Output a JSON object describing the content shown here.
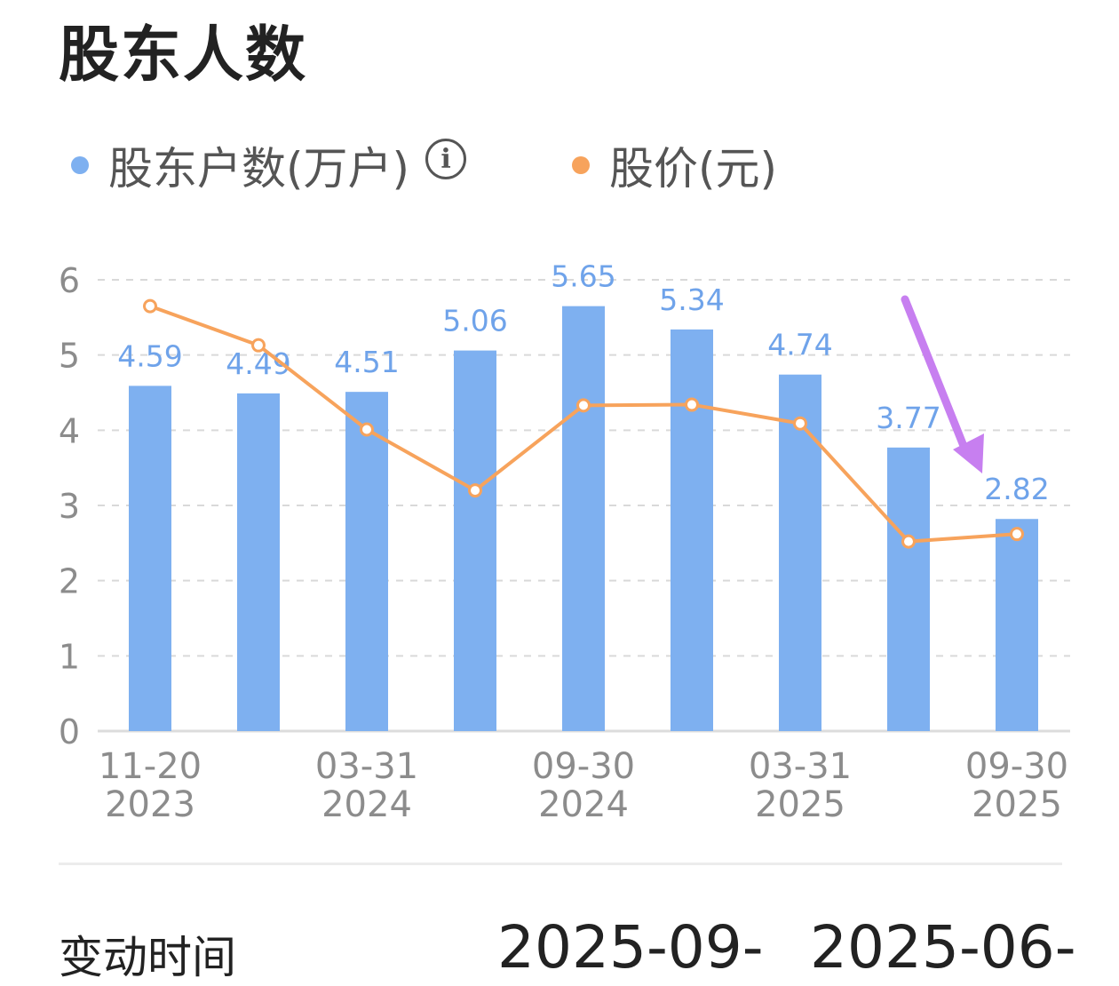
{
  "page": {
    "title": "股东人数"
  },
  "legend": {
    "series1_label": "股东户数(万户)",
    "series2_label": "股价(元)",
    "info_icon": "info-circle-icon",
    "series1_color": "#7eb0f0",
    "series2_color": "#f7a35c"
  },
  "chart_data": {
    "type": "bar",
    "categories": [
      "2023-11-20",
      "",
      "2024-03-31",
      "",
      "2024-09-30",
      "",
      "2025-03-31",
      "",
      "2025-09-30"
    ],
    "x_tick_labels": [
      {
        "index": 0,
        "line1": "11-20",
        "line2": "2023"
      },
      {
        "index": 2,
        "line1": "03-31",
        "line2": "2024"
      },
      {
        "index": 4,
        "line1": "09-30",
        "line2": "2024"
      },
      {
        "index": 6,
        "line1": "03-31",
        "line2": "2025"
      },
      {
        "index": 8,
        "line1": "09-30",
        "line2": "2025"
      }
    ],
    "series": [
      {
        "name": "股东户数(万户)",
        "type": "bar",
        "color": "#7eb0f0",
        "values": [
          4.59,
          4.49,
          4.51,
          5.06,
          5.65,
          5.34,
          4.74,
          3.77,
          2.82
        ],
        "labels": [
          "4.59",
          "4.49",
          "4.51",
          "5.06",
          "5.65",
          "5.34",
          "4.74",
          "3.77",
          "2.82"
        ]
      },
      {
        "name": "股价(元)",
        "type": "line",
        "color": "#f7a35c",
        "values": [
          5.65,
          5.13,
          4.01,
          3.2,
          4.33,
          4.34,
          4.09,
          2.52,
          2.62
        ]
      }
    ],
    "y_ticks": [
      "0",
      "1",
      "2",
      "3",
      "4",
      "5",
      "6"
    ],
    "ylim": [
      0,
      6
    ],
    "grid": "dashed-horizontal",
    "legend_position": "top-left",
    "annotation": {
      "type": "arrow",
      "target_index": 8,
      "color": "#c77ff0"
    }
  },
  "footer": {
    "label": "变动时间",
    "date1": "2025-09-",
    "date2": "2025-06-"
  }
}
